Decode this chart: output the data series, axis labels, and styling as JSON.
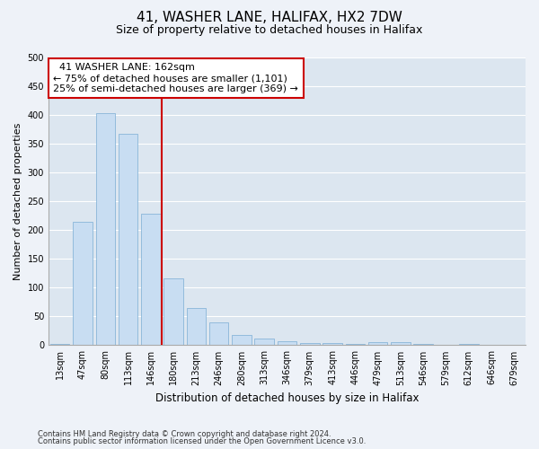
{
  "title1": "41, WASHER LANE, HALIFAX, HX2 7DW",
  "title2": "Size of property relative to detached houses in Halifax",
  "xlabel": "Distribution of detached houses by size in Halifax",
  "ylabel": "Number of detached properties",
  "categories": [
    "13sqm",
    "47sqm",
    "80sqm",
    "113sqm",
    "146sqm",
    "180sqm",
    "213sqm",
    "246sqm",
    "280sqm",
    "313sqm",
    "346sqm",
    "379sqm",
    "413sqm",
    "446sqm",
    "479sqm",
    "513sqm",
    "546sqm",
    "579sqm",
    "612sqm",
    "646sqm",
    "679sqm"
  ],
  "values": [
    2,
    215,
    403,
    368,
    228,
    116,
    65,
    40,
    18,
    12,
    7,
    4,
    4,
    2,
    6,
    6,
    2,
    1,
    2,
    1,
    1
  ],
  "bar_color": "#c8ddf2",
  "bar_edge_color": "#7aadd4",
  "vline_x": 4.5,
  "vline_color": "#cc0000",
  "annotation_text": "  41 WASHER LANE: 162sqm  \n← 75% of detached houses are smaller (1,101)\n25% of semi-detached houses are larger (369) →",
  "annotation_box_facecolor": "#ffffff",
  "annotation_box_edgecolor": "#cc0000",
  "ylim": [
    0,
    500
  ],
  "yticks": [
    0,
    50,
    100,
    150,
    200,
    250,
    300,
    350,
    400,
    450,
    500
  ],
  "fig_facecolor": "#eef2f8",
  "plot_facecolor": "#dce6f0",
  "title1_fontsize": 11,
  "title2_fontsize": 9,
  "xlabel_fontsize": 8.5,
  "ylabel_fontsize": 8,
  "tick_fontsize": 7,
  "annotation_fontsize": 8,
  "footnote1": "Contains HM Land Registry data © Crown copyright and database right 2024.",
  "footnote2": "Contains public sector information licensed under the Open Government Licence v3.0."
}
